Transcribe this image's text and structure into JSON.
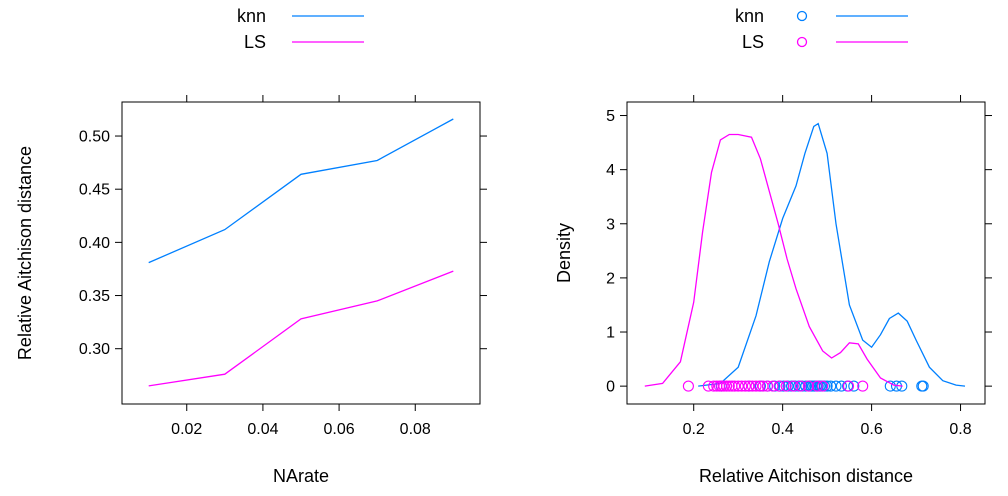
{
  "chart_data": [
    {
      "type": "line",
      "title": "",
      "xlabel": "NArate",
      "ylabel": "Relative Aitchison distance",
      "xlim": [
        0.003,
        0.097
      ],
      "ylim": [
        0.248,
        0.532
      ],
      "x_ticks": [
        0.02,
        0.04,
        0.06,
        0.08
      ],
      "x_tick_labels": [
        "0.02",
        "0.04",
        "0.06",
        "0.08"
      ],
      "y_ticks": [
        0.3,
        0.35,
        0.4,
        0.45,
        0.5
      ],
      "y_tick_labels": [
        "0.30",
        "0.35",
        "0.40",
        "0.45",
        "0.50"
      ],
      "x": [
        0.01,
        0.03,
        0.05,
        0.07,
        0.09
      ],
      "legend_position": "top",
      "grid": false,
      "series": [
        {
          "name": "knn",
          "color": "#0080ff",
          "values": [
            0.381,
            0.412,
            0.464,
            0.477,
            0.516
          ]
        },
        {
          "name": "LS",
          "color": "#ff00ff",
          "values": [
            0.265,
            0.276,
            0.328,
            0.345,
            0.373
          ]
        }
      ]
    },
    {
      "type": "line",
      "title": "",
      "xlabel": "Relative Aitchison distance",
      "ylabel": "Density",
      "xlim": [
        0.05,
        0.855
      ],
      "ylim": [
        -0.33,
        5.25
      ],
      "x_ticks": [
        0.2,
        0.4,
        0.6,
        0.8
      ],
      "x_tick_labels": [
        "0.2",
        "0.4",
        "0.6",
        "0.8"
      ],
      "y_ticks": [
        0,
        1,
        2,
        3,
        4,
        5
      ],
      "y_tick_labels": [
        "0",
        "1",
        "2",
        "3",
        "4",
        "5"
      ],
      "legend_position": "top",
      "grid": false,
      "series": [
        {
          "name": "knn",
          "color": "#0080ff",
          "density_x": [
            0.21,
            0.26,
            0.3,
            0.34,
            0.37,
            0.4,
            0.43,
            0.45,
            0.47,
            0.48,
            0.5,
            0.52,
            0.55,
            0.58,
            0.6,
            0.62,
            0.64,
            0.66,
            0.68,
            0.7,
            0.73,
            0.76,
            0.79,
            0.81
          ],
          "density_y": [
            0.0,
            0.05,
            0.35,
            1.3,
            2.3,
            3.1,
            3.7,
            4.3,
            4.8,
            4.85,
            4.3,
            3.0,
            1.5,
            0.85,
            0.72,
            0.95,
            1.25,
            1.35,
            1.2,
            0.85,
            0.35,
            0.1,
            0.02,
            0.0
          ],
          "points": [
            0.262,
            0.324,
            0.35,
            0.366,
            0.382,
            0.394,
            0.402,
            0.412,
            0.42,
            0.428,
            0.436,
            0.444,
            0.452,
            0.46,
            0.464,
            0.468,
            0.472,
            0.476,
            0.48,
            0.484,
            0.488,
            0.494,
            0.5,
            0.508,
            0.52,
            0.532,
            0.546,
            0.56,
            0.642,
            0.656,
            0.668,
            0.713,
            0.716
          ]
        },
        {
          "name": "LS",
          "color": "#ff00ff",
          "density_x": [
            0.09,
            0.13,
            0.17,
            0.2,
            0.22,
            0.24,
            0.26,
            0.28,
            0.3,
            0.33,
            0.35,
            0.37,
            0.39,
            0.41,
            0.43,
            0.46,
            0.49,
            0.51,
            0.53,
            0.55,
            0.57,
            0.59,
            0.62,
            0.65,
            0.67
          ],
          "density_y": [
            0.0,
            0.05,
            0.45,
            1.55,
            2.85,
            3.95,
            4.55,
            4.65,
            4.65,
            4.6,
            4.2,
            3.6,
            3.0,
            2.35,
            1.8,
            1.1,
            0.65,
            0.52,
            0.62,
            0.8,
            0.78,
            0.5,
            0.15,
            0.02,
            0.0
          ],
          "points": [
            0.188,
            0.233,
            0.245,
            0.252,
            0.258,
            0.263,
            0.268,
            0.274,
            0.28,
            0.286,
            0.292,
            0.3,
            0.308,
            0.316,
            0.324,
            0.332,
            0.34,
            0.348,
            0.356,
            0.366,
            0.378,
            0.392,
            0.408,
            0.424,
            0.44,
            0.458,
            0.478,
            0.49,
            0.548,
            0.58
          ]
        }
      ]
    }
  ]
}
